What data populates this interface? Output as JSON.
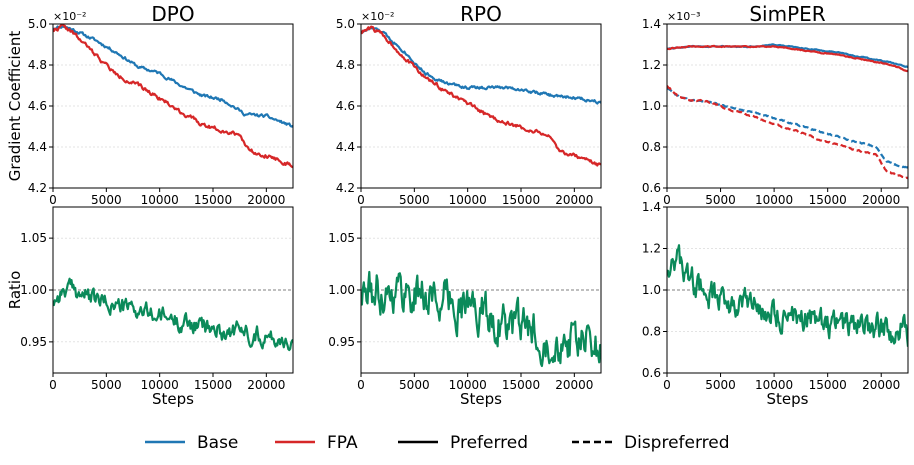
{
  "colors": {
    "base": "#1f77b4",
    "fpa": "#d62728",
    "ratio": "#0b8a5a",
    "black": "#000000"
  },
  "legend": {
    "base": "Base",
    "fpa": "FPA",
    "preferred": "Preferred",
    "dispreferred": "Dispreferred"
  },
  "chart_data": [
    {
      "id": "dpo_grad",
      "type": "line",
      "title": "DPO",
      "ylabel": "Gradient Coefficient",
      "xlabel": "",
      "multiplier": "×10⁻²",
      "xlim": [
        0,
        22500
      ],
      "ylim": [
        4.2,
        5.0
      ],
      "xticks": [
        0,
        5000,
        10000,
        15000,
        20000
      ],
      "yticks": [
        4.2,
        4.4,
        4.6,
        4.8,
        5.0
      ],
      "ytick_labels": [
        "4.2",
        "4.4",
        "4.6",
        "4.8",
        "5.0"
      ],
      "grid_y": [
        4.4,
        4.6,
        4.8
      ],
      "series": [
        {
          "name": "Base",
          "style": "solid",
          "color_key": "base",
          "noise": 0.006,
          "seed": 11,
          "x": [
            0,
            1000,
            2000,
            4000,
            6000,
            8000,
            10000,
            12000,
            14000,
            16000,
            18000,
            20000,
            22500
          ],
          "y": [
            4.98,
            4.99,
            4.97,
            4.92,
            4.86,
            4.79,
            4.76,
            4.7,
            4.65,
            4.63,
            4.56,
            4.55,
            4.5
          ]
        },
        {
          "name": "FPA",
          "style": "solid",
          "color_key": "fpa",
          "noise": 0.008,
          "seed": 22,
          "x": [
            0,
            1000,
            2000,
            4000,
            6000,
            8000,
            10000,
            12000,
            14000,
            16000,
            17500,
            18500,
            20000,
            21500,
            22500
          ],
          "y": [
            4.97,
            4.99,
            4.95,
            4.85,
            4.75,
            4.7,
            4.64,
            4.57,
            4.51,
            4.48,
            4.46,
            4.38,
            4.36,
            4.33,
            4.3
          ]
        }
      ]
    },
    {
      "id": "rpo_grad",
      "type": "line",
      "title": "RPO",
      "ylabel": "",
      "xlabel": "",
      "multiplier": "×10⁻²",
      "xlim": [
        0,
        22500
      ],
      "ylim": [
        4.2,
        5.0
      ],
      "xticks": [
        0,
        5000,
        10000,
        15000,
        20000
      ],
      "yticks": [
        4.2,
        4.4,
        4.6,
        4.8,
        5.0
      ],
      "ytick_labels": [
        "4.2",
        "4.4",
        "4.6",
        "4.8",
        "5.0"
      ],
      "grid_y": [
        4.4,
        4.6,
        4.8
      ],
      "series": [
        {
          "name": "Base",
          "style": "solid",
          "color_key": "base",
          "noise": 0.006,
          "seed": 33,
          "x": [
            0,
            1000,
            2000,
            4000,
            6000,
            8000,
            10000,
            12000,
            14000,
            16000,
            18000,
            20000,
            22500
          ],
          "y": [
            4.96,
            4.98,
            4.96,
            4.87,
            4.76,
            4.71,
            4.69,
            4.69,
            4.69,
            4.67,
            4.65,
            4.64,
            4.62
          ]
        },
        {
          "name": "FPA",
          "style": "solid",
          "color_key": "fpa",
          "noise": 0.008,
          "seed": 44,
          "x": [
            0,
            1000,
            2000,
            4000,
            6000,
            8000,
            10000,
            12000,
            14000,
            16000,
            17500,
            18500,
            20000,
            21500,
            22500
          ],
          "y": [
            4.96,
            4.98,
            4.95,
            4.84,
            4.74,
            4.67,
            4.61,
            4.55,
            4.51,
            4.48,
            4.46,
            4.38,
            4.36,
            4.33,
            4.31
          ]
        }
      ]
    },
    {
      "id": "simper_grad",
      "type": "line",
      "title": "SimPER",
      "ylabel": "",
      "xlabel": "",
      "multiplier": "×10⁻³",
      "xlim": [
        0,
        22500
      ],
      "ylim": [
        0.6,
        1.4
      ],
      "xticks": [
        0,
        5000,
        10000,
        15000,
        20000
      ],
      "yticks": [
        0.6,
        0.8,
        1.0,
        1.2,
        1.4
      ],
      "ytick_labels": [
        "0.6",
        "0.8",
        "1.0",
        "1.2",
        "1.4"
      ],
      "grid_y": [
        0.8,
        1.0,
        1.2
      ],
      "series": [
        {
          "name": "Base Preferred",
          "style": "solid",
          "color_key": "base",
          "noise": 0.002,
          "seed": 55,
          "x": [
            0,
            2000,
            5000,
            8000,
            10000,
            13000,
            16000,
            19000,
            21000,
            22500
          ],
          "y": [
            1.28,
            1.29,
            1.29,
            1.29,
            1.3,
            1.28,
            1.26,
            1.23,
            1.21,
            1.19
          ]
        },
        {
          "name": "FPA Preferred",
          "style": "solid",
          "color_key": "fpa",
          "noise": 0.002,
          "seed": 66,
          "x": [
            0,
            2000,
            5000,
            8000,
            10000,
            13000,
            16000,
            19000,
            21000,
            22500
          ],
          "y": [
            1.28,
            1.29,
            1.29,
            1.29,
            1.29,
            1.27,
            1.25,
            1.22,
            1.2,
            1.17
          ]
        },
        {
          "name": "Base Dispreferred",
          "style": "dashed",
          "color_key": "base",
          "noise": 0.003,
          "seed": 77,
          "x": [
            0,
            1000,
            2000,
            4000,
            6000,
            8000,
            10000,
            12000,
            14000,
            16000,
            18000,
            19500,
            20500,
            21500,
            22500
          ],
          "y": [
            1.09,
            1.05,
            1.03,
            1.02,
            0.99,
            0.97,
            0.94,
            0.91,
            0.88,
            0.85,
            0.82,
            0.8,
            0.73,
            0.71,
            0.7
          ]
        },
        {
          "name": "FPA Dispreferred",
          "style": "dashed",
          "color_key": "fpa",
          "noise": 0.003,
          "seed": 88,
          "x": [
            0,
            1000,
            2000,
            4000,
            6000,
            8000,
            10000,
            12000,
            14000,
            16000,
            18000,
            19500,
            20500,
            21500,
            22500
          ],
          "y": [
            1.1,
            1.05,
            1.03,
            1.02,
            0.98,
            0.95,
            0.91,
            0.88,
            0.84,
            0.81,
            0.78,
            0.76,
            0.68,
            0.66,
            0.65
          ]
        }
      ]
    },
    {
      "id": "dpo_ratio",
      "type": "line",
      "title": "",
      "ylabel": "Ratio",
      "xlabel": "Steps",
      "multiplier": "",
      "xlim": [
        0,
        22500
      ],
      "ylim": [
        0.92,
        1.08
      ],
      "xticks": [
        0,
        5000,
        10000,
        15000,
        20000
      ],
      "yticks": [
        0.95,
        1.0,
        1.05
      ],
      "ytick_labels": [
        "0.95",
        "1.00",
        "1.05"
      ],
      "grid_y": [
        0.95,
        1.05
      ],
      "ref_y": 1.0,
      "series": [
        {
          "name": "Ratio",
          "style": "solid",
          "color_key": "ratio",
          "noise": 0.007,
          "seed": 99,
          "x": [
            0,
            1000,
            2000,
            4000,
            6000,
            8000,
            10000,
            12000,
            14000,
            16000,
            18000,
            20000,
            22500
          ],
          "y": [
            0.99,
            1.0,
            1.0,
            0.99,
            0.985,
            0.98,
            0.975,
            0.97,
            0.965,
            0.96,
            0.96,
            0.955,
            0.95
          ]
        }
      ]
    },
    {
      "id": "rpo_ratio",
      "type": "line",
      "title": "",
      "ylabel": "",
      "xlabel": "Steps",
      "multiplier": "",
      "xlim": [
        0,
        22500
      ],
      "ylim": [
        0.92,
        1.08
      ],
      "xticks": [
        0,
        5000,
        10000,
        15000,
        20000
      ],
      "yticks": [
        0.95,
        1.0,
        1.05
      ],
      "ytick_labels": [
        "0.95",
        "1.00",
        "1.05"
      ],
      "grid_y": [
        0.95,
        1.05
      ],
      "ref_y": 1.0,
      "series": [
        {
          "name": "Ratio",
          "style": "solid",
          "color_key": "ratio",
          "noise": 0.016,
          "seed": 111,
          "x": [
            0,
            2000,
            4000,
            6000,
            8000,
            10000,
            12000,
            14000,
            16000,
            18000,
            20000,
            22500
          ],
          "y": [
            0.995,
            1.0,
            1.0,
            0.995,
            0.99,
            0.985,
            0.975,
            0.965,
            0.96,
            0.955,
            0.95,
            0.945
          ]
        }
      ]
    },
    {
      "id": "simper_ratio",
      "type": "line",
      "title": "",
      "ylabel": "",
      "xlabel": "Steps",
      "multiplier": "",
      "xlim": [
        0,
        22500
      ],
      "ylim": [
        0.6,
        1.4
      ],
      "xticks": [
        0,
        5000,
        10000,
        15000,
        20000
      ],
      "yticks": [
        0.6,
        0.8,
        1.0,
        1.2,
        1.4
      ],
      "ytick_labels": [
        "0.6",
        "0.8",
        "1.0",
        "1.2",
        "1.4"
      ],
      "grid_y": [
        0.8,
        1.2
      ],
      "ref_y": 1.0,
      "series": [
        {
          "name": "Ratio",
          "style": "solid",
          "color_key": "ratio",
          "noise": 0.055,
          "seed": 123,
          "x": [
            0,
            500,
            1500,
            3000,
            5000,
            7000,
            9000,
            11000,
            13000,
            15000,
            17000,
            19000,
            21000,
            22500
          ],
          "y": [
            1.1,
            1.18,
            1.1,
            1.0,
            0.96,
            0.93,
            0.9,
            0.88,
            0.86,
            0.84,
            0.83,
            0.82,
            0.81,
            0.8
          ]
        }
      ]
    }
  ]
}
